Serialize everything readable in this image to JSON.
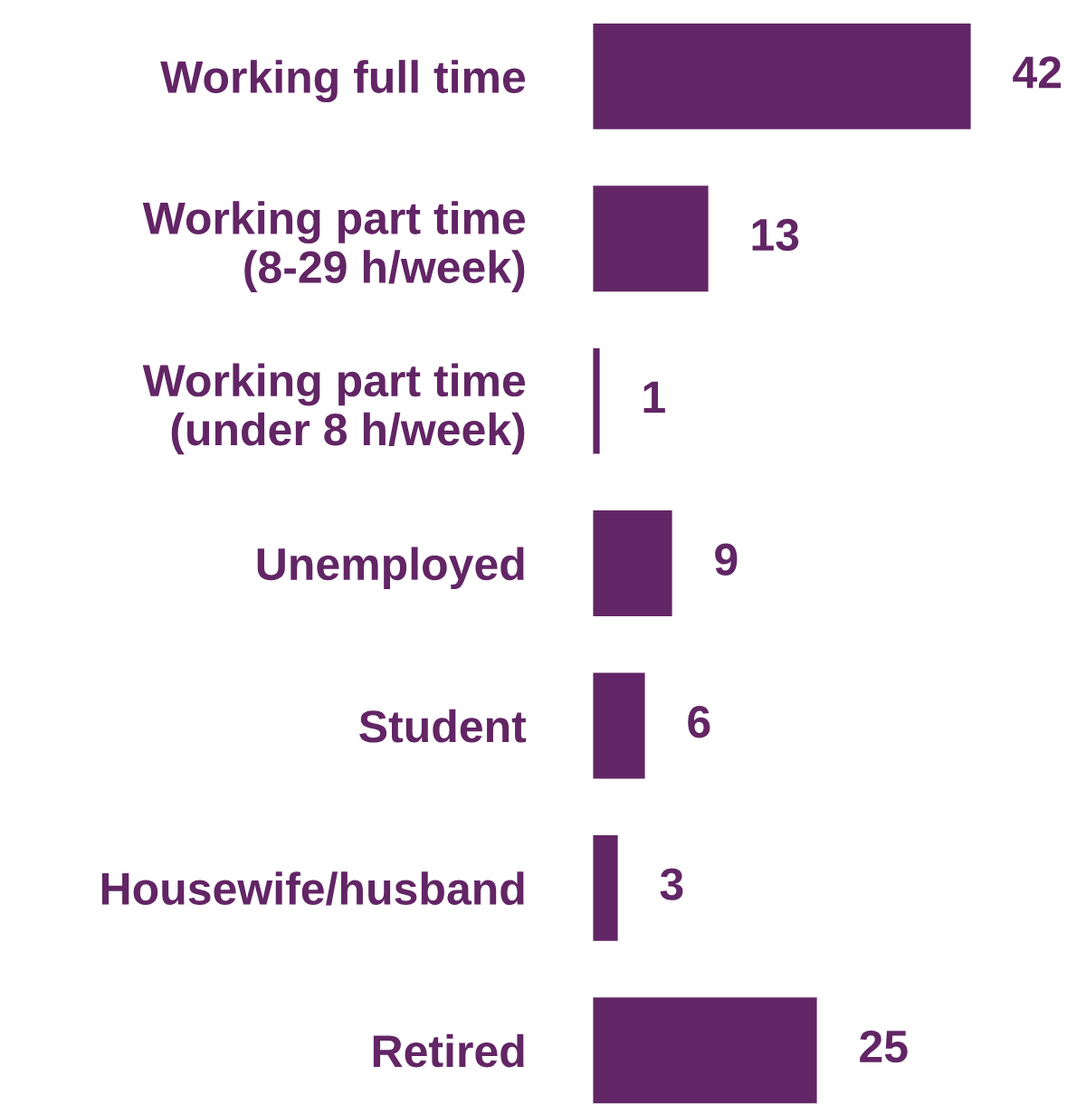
{
  "chart_data": {
    "type": "bar",
    "orientation": "horizontal",
    "categories": [
      "Working full time",
      "Working part time\n(8-29 h/week)",
      "Working part time\n(under 8 h/week)",
      "Unemployed",
      "Student",
      "Housewife/husband",
      "Retired"
    ],
    "values": [
      42,
      13,
      1,
      9,
      6,
      3,
      25
    ],
    "color": "#622565",
    "data_labels": true,
    "tick_labels": "y",
    "grid": false,
    "legend": false
  }
}
